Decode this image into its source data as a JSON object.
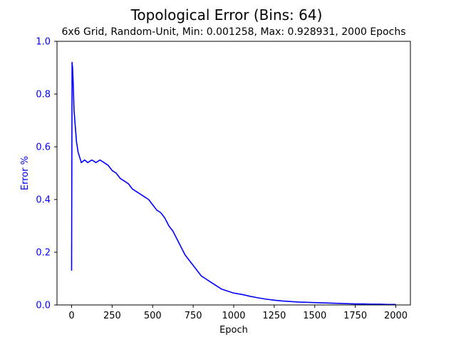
{
  "chart_data": {
    "type": "line",
    "title": "Topological Error (Bins: 64)",
    "subtitle": "6x6 Grid, Random-Unit, Min: 0.001258, Max: 0.928931, 2000 Epochs",
    "xlabel": "Epoch",
    "ylabel": "Error %",
    "xlim": [
      -90,
      2090
    ],
    "ylim": [
      0,
      1.0
    ],
    "x_ticks": [
      0,
      250,
      500,
      750,
      1000,
      1250,
      1500,
      1750,
      2000
    ],
    "y_ticks": [
      0.0,
      0.2,
      0.4,
      0.6,
      0.8,
      1.0
    ],
    "y_tick_labels": [
      "0.0",
      "0.2",
      "0.4",
      "0.6",
      "0.8",
      "1.0"
    ],
    "grid": false,
    "legend": "none",
    "series": [
      {
        "x": [
          0,
          3,
          6,
          10,
          15,
          20,
          25,
          30,
          40,
          50,
          60,
          80,
          100,
          125,
          150,
          175,
          200,
          225,
          250,
          275,
          300,
          325,
          350,
          375,
          400,
          425,
          450,
          475,
          500,
          525,
          550,
          575,
          600,
          625,
          650,
          675,
          700,
          725,
          750,
          775,
          800,
          825,
          850,
          875,
          900,
          925,
          950,
          975,
          1000,
          1050,
          1100,
          1150,
          1200,
          1250,
          1300,
          1350,
          1400,
          1450,
          1500,
          1550,
          1600,
          1650,
          1700,
          1750,
          1800,
          1850,
          1900,
          1950,
          2000
        ],
        "values": [
          0.13,
          0.92,
          0.9,
          0.84,
          0.74,
          0.7,
          0.66,
          0.62,
          0.58,
          0.56,
          0.54,
          0.55,
          0.54,
          0.55,
          0.54,
          0.55,
          0.54,
          0.53,
          0.51,
          0.5,
          0.48,
          0.47,
          0.46,
          0.44,
          0.43,
          0.42,
          0.41,
          0.4,
          0.38,
          0.36,
          0.35,
          0.33,
          0.3,
          0.28,
          0.25,
          0.22,
          0.19,
          0.17,
          0.15,
          0.13,
          0.11,
          0.1,
          0.09,
          0.08,
          0.07,
          0.06,
          0.055,
          0.05,
          0.045,
          0.04,
          0.033,
          0.027,
          0.022,
          0.018,
          0.015,
          0.013,
          0.011,
          0.01,
          0.009,
          0.008,
          0.007,
          0.006,
          0.005,
          0.004,
          0.004,
          0.003,
          0.003,
          0.002,
          0.002
        ],
        "color": "#0000ff"
      }
    ],
    "colors": {
      "line": "#0000ff",
      "y_axis_text": "#0000ff",
      "x_axis_text": "#000000",
      "frame": "#000000"
    }
  }
}
